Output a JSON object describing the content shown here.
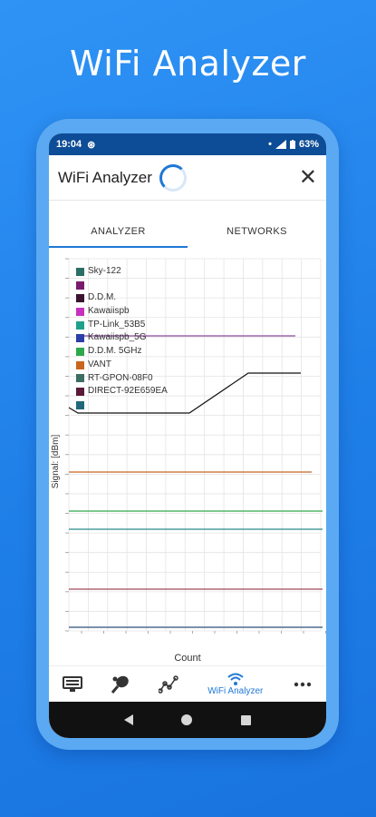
{
  "promo": {
    "title": "WiFi Analyzer"
  },
  "status_bar": {
    "time": "19:04",
    "battery": "63%"
  },
  "app_bar": {
    "title": "WiFi Analyzer",
    "close_symbol": "✕"
  },
  "tabs": [
    {
      "label": "ANALYZER",
      "active": true
    },
    {
      "label": "NETWORKS",
      "active": false
    }
  ],
  "chart_data": {
    "type": "line",
    "ylabel": "Signal: [dBm]",
    "xlabel": "Count",
    "grid": true,
    "legend_position": "top-left",
    "legend": [
      {
        "name": "Sky-122",
        "color": "#2b6f65"
      },
      {
        "name": "",
        "color": "#7a1a6e"
      },
      {
        "name": "D.D.M.",
        "color": "#3a1330"
      },
      {
        "name": "Kawaiispb",
        "color": "#c531c0"
      },
      {
        "name": "TP-Link_53B5",
        "color": "#1fa08a"
      },
      {
        "name": "Kawaiispb_5G",
        "color": "#2b3fa8"
      },
      {
        "name": "D.D.M. 5GHz",
        "color": "#2ea84b"
      },
      {
        "name": "VANT",
        "color": "#c8661e"
      },
      {
        "name": "RT-GPON-08F0",
        "color": "#3c6e62"
      },
      {
        "name": "DIRECT-92E659EA",
        "color": "#5a1a37"
      },
      {
        "name": "",
        "color": "#22687a"
      }
    ]
  },
  "bottom_nav": {
    "items": [
      {
        "icon": "monitor-icon",
        "label": ""
      },
      {
        "icon": "tennis-icon",
        "label": ""
      },
      {
        "icon": "graph-icon",
        "label": ""
      },
      {
        "icon": "wifi-icon",
        "label": "WiFi Analyzer"
      },
      {
        "icon": "more-icon",
        "label": ""
      }
    ]
  }
}
